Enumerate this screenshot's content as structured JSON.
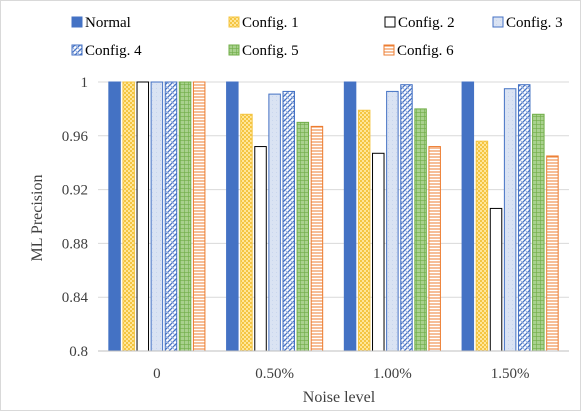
{
  "chart_data": {
    "type": "bar",
    "title": "",
    "xlabel": "Noise level",
    "ylabel": "ML Precision",
    "categories": [
      "0",
      "0.50%",
      "1.00%",
      "1.50%"
    ],
    "ylim": [
      0.8,
      1.0
    ],
    "yticks": [
      "0.8",
      "0.84",
      "0.88",
      "0.92",
      "0.96",
      "1"
    ],
    "grid": true,
    "legend_position": "top",
    "series": [
      {
        "name": "Normal",
        "values": [
          1.0,
          1.0,
          1.0,
          1.0
        ],
        "color": "#4472c4",
        "pattern": "solid"
      },
      {
        "name": "Config. 1",
        "values": [
          1.0,
          0.976,
          0.979,
          0.956
        ],
        "color": "#ffc000",
        "pattern": "dotted"
      },
      {
        "name": "Config. 2",
        "values": [
          1.0,
          0.952,
          0.947,
          0.906
        ],
        "color": "#000000",
        "pattern": "outline"
      },
      {
        "name": "Config. 3",
        "values": [
          1.0,
          0.991,
          0.993,
          0.995
        ],
        "color": "#4472c4",
        "pattern": "light"
      },
      {
        "name": "Config. 4",
        "values": [
          1.0,
          0.993,
          0.998,
          0.998
        ],
        "color": "#4472c4",
        "pattern": "crosshatch"
      },
      {
        "name": "Config. 5",
        "values": [
          1.0,
          0.97,
          0.98,
          0.976
        ],
        "color": "#70ad47",
        "pattern": "grid"
      },
      {
        "name": "Config. 6",
        "values": [
          1.0,
          0.967,
          0.952,
          0.945
        ],
        "color": "#ed7d31",
        "pattern": "hlines"
      }
    ]
  }
}
